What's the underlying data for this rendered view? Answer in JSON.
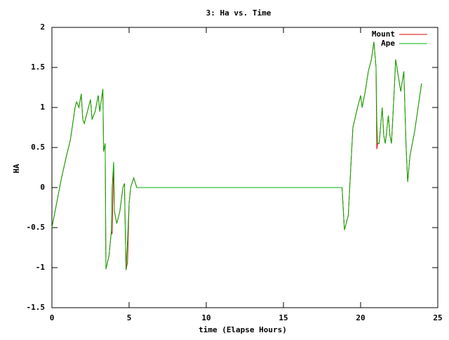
{
  "chart_data": {
    "type": "line",
    "title": "3: Ha vs. Time",
    "x_label": "time (Elapse Hours)",
    "y_label": "HA",
    "x": [
      0,
      0.3,
      0.6,
      0.9,
      1.2,
      1.5,
      1.6,
      1.75,
      1.9,
      2.0,
      2.1,
      2.3,
      2.5,
      2.6,
      2.8,
      3.0,
      3.1,
      3.3,
      3.35,
      3.45,
      3.5,
      3.7,
      3.85,
      3.9,
      4.0,
      4.05,
      4.2,
      4.4,
      4.6,
      4.7,
      4.8,
      4.9,
      5.0,
      5.1,
      5.3,
      5.5,
      18.8,
      18.95,
      19.2,
      19.5,
      19.8,
      20.0,
      20.1,
      20.3,
      20.5,
      20.7,
      20.86,
      21.0,
      21.05,
      21.1,
      21.2,
      21.4,
      21.5,
      21.6,
      21.8,
      21.9,
      22.0,
      22.2,
      22.27,
      22.6,
      22.8,
      22.95,
      23.05,
      23.2,
      23.5,
      23.8,
      23.95
    ],
    "series": [
      {
        "name": "Mount",
        "color": "#e00000",
        "values": [
          -0.5,
          -0.2,
          0.1,
          0.36,
          0.6,
          1.0,
          1.07,
          1.0,
          1.17,
          0.85,
          0.8,
          0.95,
          1.1,
          0.85,
          0.95,
          1.15,
          0.95,
          1.23,
          0.45,
          0.55,
          -1.02,
          -0.85,
          -0.55,
          -0.58,
          0.32,
          -0.3,
          -0.45,
          -0.3,
          0.0,
          0.05,
          -1.03,
          -0.93,
          -0.2,
          0.0,
          0.12,
          0.0,
          0.0,
          -0.53,
          -0.35,
          0.75,
          1.0,
          1.15,
          1.0,
          1.2,
          1.45,
          1.6,
          1.82,
          1.5,
          0.48,
          0.55,
          0.55,
          1.0,
          0.65,
          0.55,
          0.9,
          0.65,
          0.55,
          1.3,
          1.6,
          1.2,
          1.45,
          0.5,
          0.07,
          0.4,
          0.7,
          1.1,
          1.3
        ]
      },
      {
        "name": "Ape",
        "color": "#00b000",
        "values": [
          -0.5,
          -0.2,
          0.1,
          0.36,
          0.6,
          1.0,
          1.07,
          1.0,
          1.17,
          0.85,
          0.8,
          0.95,
          1.1,
          0.85,
          0.95,
          1.15,
          0.95,
          1.23,
          0.45,
          0.55,
          -1.02,
          -0.85,
          -0.55,
          0.0,
          0.32,
          -0.3,
          -0.45,
          -0.3,
          0.0,
          0.05,
          -1.03,
          -0.65,
          -0.2,
          0.0,
          0.12,
          0.0,
          0.0,
          -0.53,
          -0.35,
          0.75,
          1.0,
          1.15,
          1.0,
          1.2,
          1.45,
          1.6,
          1.82,
          1.5,
          0.85,
          0.55,
          0.55,
          1.0,
          0.65,
          0.55,
          0.9,
          0.65,
          0.55,
          1.3,
          1.6,
          1.2,
          1.45,
          0.5,
          0.07,
          0.4,
          0.7,
          1.1,
          1.3
        ]
      }
    ],
    "xlim": [
      0,
      25
    ],
    "xticks": [
      0,
      5,
      10,
      15,
      20,
      25
    ],
    "ylim": [
      -1.5,
      2
    ],
    "yticks": [
      -1.5,
      -1,
      -0.5,
      0,
      0.5,
      1,
      1.5,
      2
    ],
    "grid": false,
    "legend": "top-right"
  }
}
